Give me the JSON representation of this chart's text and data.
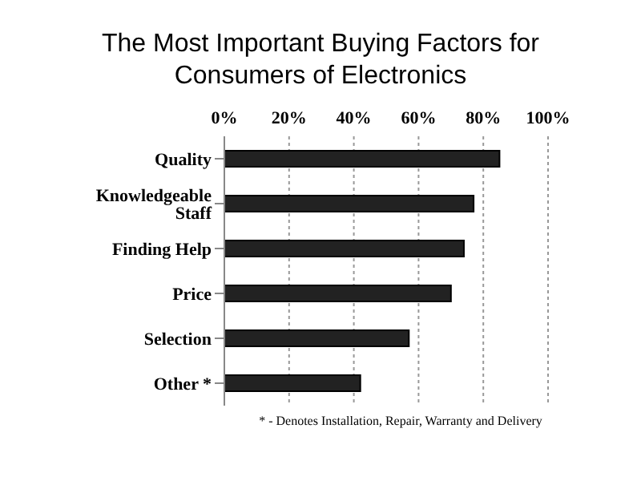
{
  "chart_data": {
    "type": "bar",
    "title": "The Most Important Buying Factors for Consumers of Electronics",
    "orientation": "horizontal",
    "categories": [
      "Quality",
      "Knowledgeable Staff",
      "Finding Help",
      "Price",
      "Selection",
      "Other *"
    ],
    "values": [
      85,
      77,
      74,
      70,
      57,
      42
    ],
    "color": "#222222",
    "xlim": [
      0,
      100
    ],
    "xticks": [
      {
        "value": 0,
        "label": "0%"
      },
      {
        "value": 20,
        "label": "20%"
      },
      {
        "value": 40,
        "label": "40%"
      },
      {
        "value": 60,
        "label": "60%"
      },
      {
        "value": 80,
        "label": "80%"
      },
      {
        "value": 100,
        "label": "100%"
      }
    ],
    "grid": "x",
    "annotations": [
      "* - Denotes Installation, Repair, Warranty and Delivery"
    ]
  }
}
